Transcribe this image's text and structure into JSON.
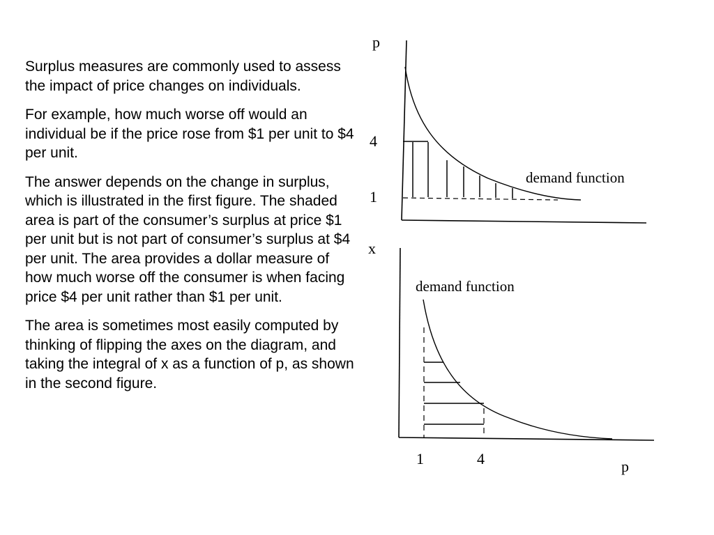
{
  "paragraphs": [
    "Surplus measures are commonly used to assess the impact of price changes on individuals.",
    "For example, how much worse off would an individual be if the price rose from $1 per unit to $4 per unit.",
    "The answer depends on the change in surplus, which is illustrated in the first figure. The shaded area is part of the consumer’s surplus at price $1 per unit but is not part of consumer’s surplus at $4 per unit. The area provides a dollar measure of how much worse off the consumer is when facing price $4 per unit rather than $1 per unit.",
    "The area is sometimes most easily computed by thinking of flipping the axes on the diagram, and taking the integral of x as a function of p, as shown in the second figure."
  ],
  "figure1": {
    "y_axis_label": "p",
    "x_axis_label": "x",
    "tick_high": "4",
    "tick_low": "1",
    "curve_label": "demand function"
  },
  "figure2": {
    "curve_label": "demand function",
    "tick_left": "1",
    "tick_right": "4",
    "x_axis_label": "p"
  },
  "colors": {
    "ink": "#000000",
    "background": "#ffffff"
  }
}
